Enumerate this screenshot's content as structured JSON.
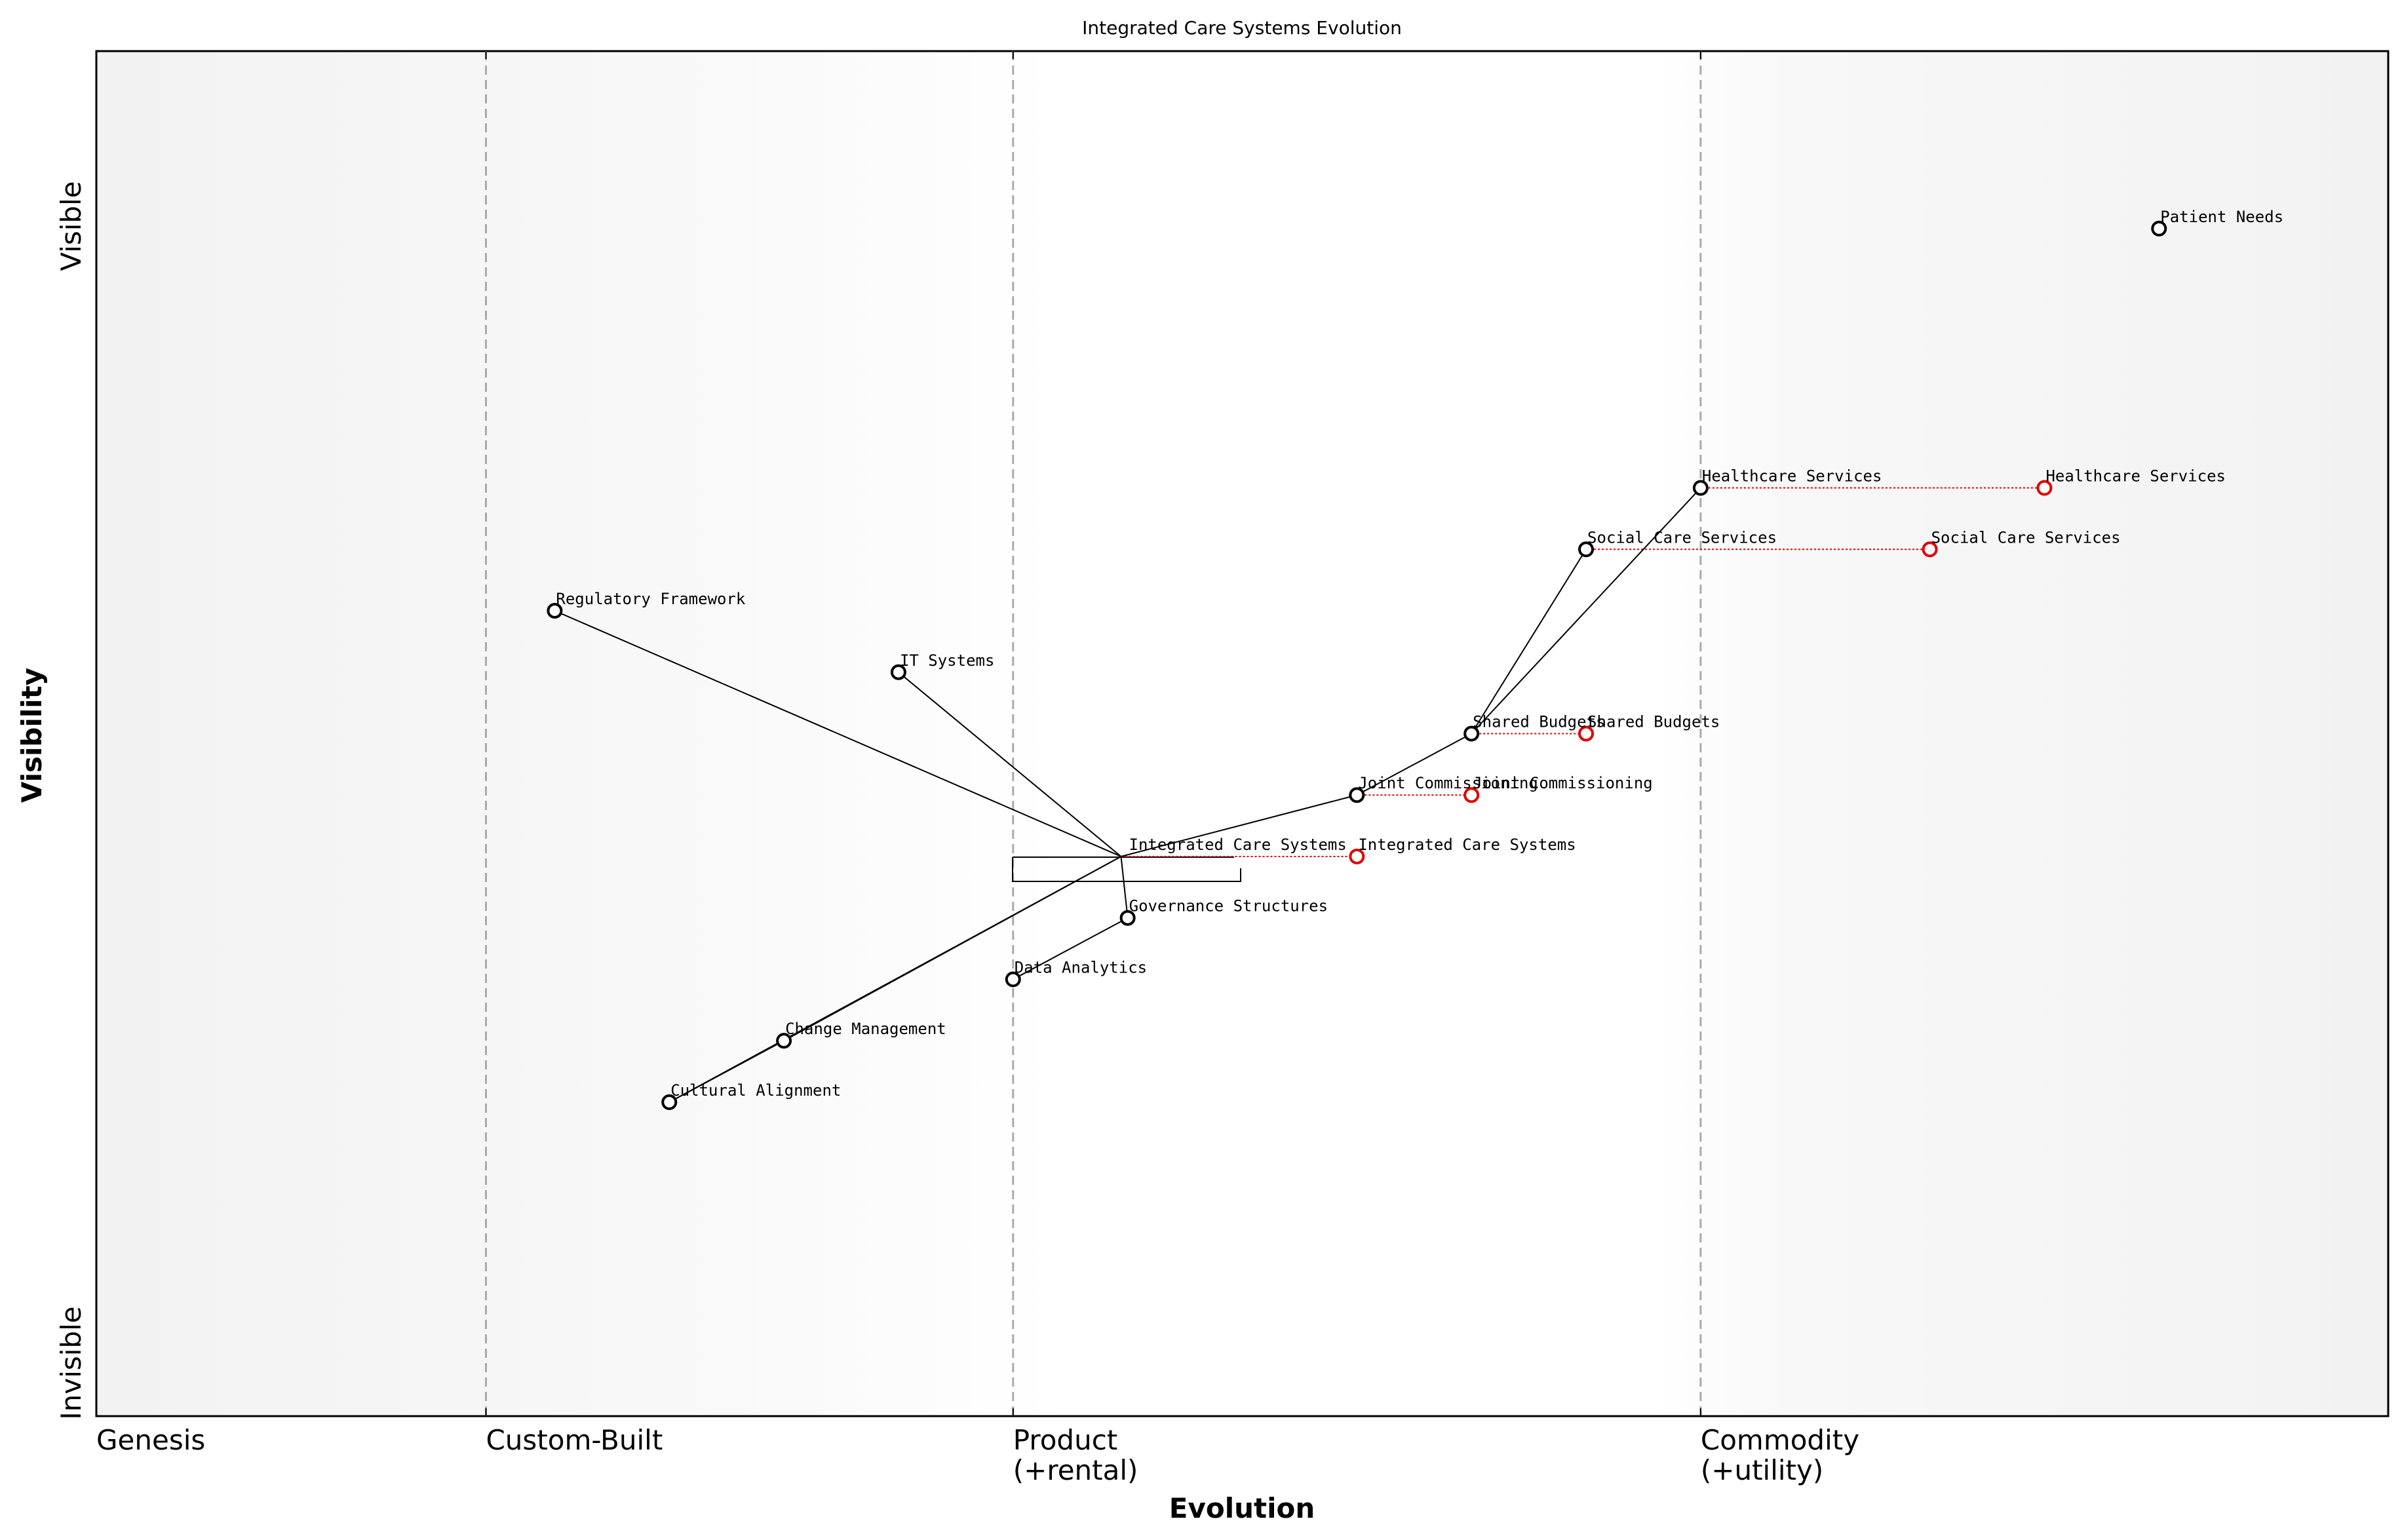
{
  "title": "Integrated Care Systems Evolution",
  "axes": {
    "x_title": "Evolution",
    "y_title": "Visibility",
    "y_top": "Visible",
    "y_bottom": "Invisible"
  },
  "stages": [
    {
      "id": "genesis",
      "line1": "Genesis",
      "line2": "",
      "at": 0.0,
      "divider": false
    },
    {
      "id": "custom",
      "line1": "Custom-Built",
      "line2": "",
      "at": 0.17,
      "divider": true
    },
    {
      "id": "product",
      "line1": "Product",
      "line2": "(+rental)",
      "at": 0.4,
      "divider": true
    },
    {
      "id": "commodity",
      "line1": "Commodity",
      "line2": "(+utility)",
      "at": 0.7,
      "divider": true
    }
  ],
  "components": [
    {
      "id": "patient-needs",
      "label": "Patient Needs",
      "evolution": 0.9,
      "visibility": 0.87
    },
    {
      "id": "healthcare-services",
      "label": "Healthcare Services",
      "evolution": 0.7,
      "visibility": 0.68
    },
    {
      "id": "social-care-services",
      "label": "Social Care Services",
      "evolution": 0.65,
      "visibility": 0.635
    },
    {
      "id": "regulatory-framework",
      "label": "Regulatory Framework",
      "evolution": 0.2,
      "visibility": 0.59
    },
    {
      "id": "it-systems",
      "label": "IT Systems",
      "evolution": 0.35,
      "visibility": 0.545
    },
    {
      "id": "shared-budgets",
      "label": "Shared Budgets",
      "evolution": 0.6,
      "visibility": 0.5
    },
    {
      "id": "joint-commissioning",
      "label": "Joint Commissioning",
      "evolution": 0.55,
      "visibility": 0.455
    },
    {
      "id": "integrated-care-systems",
      "label": "Integrated Care Systems",
      "evolution": 0.5,
      "visibility": 0.41
    },
    {
      "id": "governance-structures",
      "label": "Governance Structures",
      "evolution": 0.45,
      "visibility": 0.365
    },
    {
      "id": "data-analytics",
      "label": "Data Analytics",
      "evolution": 0.4,
      "visibility": 0.32
    },
    {
      "id": "change-management",
      "label": "Change Management",
      "evolution": 0.3,
      "visibility": 0.275
    },
    {
      "id": "cultural-alignment",
      "label": "Cultural Alignment",
      "evolution": 0.25,
      "visibility": 0.23
    }
  ],
  "links": [
    [
      "integrated-care-systems",
      "regulatory-framework"
    ],
    [
      "integrated-care-systems",
      "it-systems"
    ],
    [
      "integrated-care-systems",
      "joint-commissioning"
    ],
    [
      "joint-commissioning",
      "shared-budgets"
    ],
    [
      "shared-budgets",
      "healthcare-services"
    ],
    [
      "shared-budgets",
      "social-care-services"
    ],
    [
      "integrated-care-systems",
      "governance-structures"
    ],
    [
      "governance-structures",
      "data-analytics"
    ],
    [
      "integrated-care-systems",
      "change-management"
    ],
    [
      "integrated-care-systems",
      "cultural-alignment"
    ],
    [
      "change-management",
      "cultural-alignment"
    ]
  ],
  "evolutions": [
    {
      "from": "healthcare-services",
      "to_evolution": 0.85,
      "label": "Healthcare Services"
    },
    {
      "from": "social-care-services",
      "to_evolution": 0.8,
      "label": "Social Care Services"
    },
    {
      "from": "shared-budgets",
      "to_evolution": 0.65,
      "label": "Shared Budgets"
    },
    {
      "from": "joint-commissioning",
      "to_evolution": 0.6,
      "label": "Joint Commissioning"
    },
    {
      "from": "integrated-care-systems",
      "to_evolution": 0.55,
      "label": "Integrated Care Systems"
    }
  ],
  "colors": {
    "evolved": "#e00000",
    "divider": "#aaaaaa",
    "ink": "#000000",
    "node_fill": "#ffffff"
  }
}
